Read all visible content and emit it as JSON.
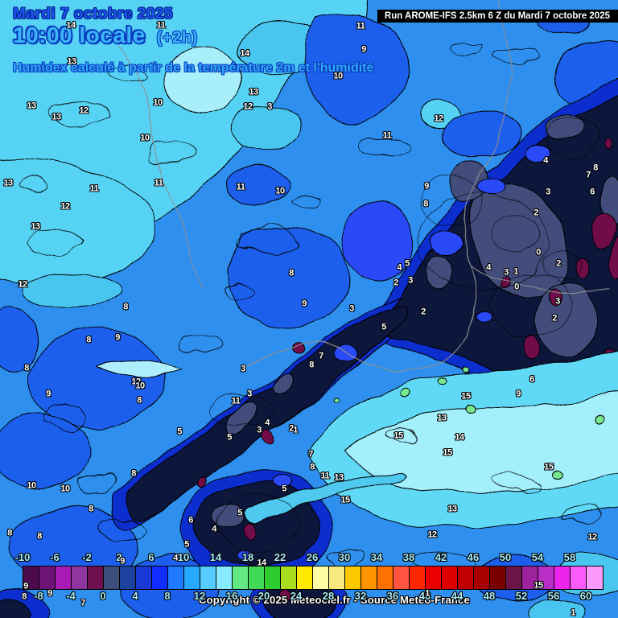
{
  "header": {
    "date": "Mardi 7 octobre 2025",
    "time": "10:00 locale",
    "time_offset": "(+2h)",
    "subtitle": "Humidex calculé à partir de la température 2m et l'humidité",
    "run_info": "Run AROME-IFS 2.5km 6 Z du Mardi 7 octobre 2025"
  },
  "footer": {
    "copyright": "Copyright © 2025 Meteociel.fr - Source Meteo-France"
  },
  "colorbar": {
    "quantity": "humidex",
    "labels_top": [
      "-10",
      "-6",
      "-2",
      "2",
      "6",
      "10",
      "14",
      "18",
      "22",
      "26",
      "30",
      "34",
      "38",
      "42",
      "46",
      "50",
      "54",
      "58"
    ],
    "labels_bottom": [
      "-8",
      "-4",
      "0",
      "4",
      "8",
      "12",
      "16",
      "20",
      "24",
      "28",
      "32",
      "36",
      "40",
      "44",
      "48",
      "52",
      "56",
      "60"
    ],
    "cells": [
      "#4c0b4c",
      "#6d1277",
      "#a81cb4",
      "#8f35a0",
      "#6e1050",
      "#3d4d7a",
      "#1b429e",
      "#1a38d4",
      "#102cff",
      "#1e7aff",
      "#27a8ff",
      "#55ccff",
      "#8aeaff",
      "#63e983",
      "#3fd957",
      "#2ecc2e",
      "#a8dc1e",
      "#ffe900",
      "#feffa5",
      "#f7e97e",
      "#fec800",
      "#fe9400",
      "#fe7000",
      "#fd5340",
      "#fe2600",
      "#ea0000",
      "#dc0000",
      "#c00000",
      "#a80000",
      "#7a0000",
      "#6b1547",
      "#9c239c",
      "#b92fc6",
      "#ec25ec",
      "#fb5bfb",
      "#fc9afc"
    ]
  },
  "map": {
    "palette": {
      "light_cyan": "#57d3f4",
      "pale_cyan": "#a9eefb",
      "cyan": "#49c6f0",
      "medium_blue": "#2e8fee",
      "blue": "#1d5eec",
      "deep_blue": "#0d2ecf",
      "bright_blue": "#2a49f7",
      "dark_navy": "#10123a",
      "slate": "#434e7c",
      "maroon": "#6f1049",
      "valley_cyan": "#5fd9f6",
      "valley_pale": "#a3effc",
      "green": "#79e98f",
      "contour": "#000000",
      "border_gray": "#8f8f8f"
    },
    "value_labels": [
      [
        14,
        88,
        32
      ],
      [
        11,
        200,
        32
      ],
      [
        14,
        304,
        67
      ],
      [
        13,
        89,
        77
      ],
      [
        11,
        448,
        33
      ],
      [
        9,
        452,
        62
      ],
      [
        10,
        420,
        95
      ],
      [
        12,
        545,
        148
      ],
      [
        13,
        315,
        115
      ],
      [
        12,
        308,
        133
      ],
      [
        3,
        335,
        133
      ],
      [
        13,
        39,
        132
      ],
      [
        12,
        104,
        138
      ],
      [
        13,
        70,
        146
      ],
      [
        10,
        196,
        128
      ],
      [
        10,
        180,
        172
      ],
      [
        13,
        10,
        228
      ],
      [
        11,
        117,
        235
      ],
      [
        11,
        197,
        228
      ],
      [
        11,
        299,
        233
      ],
      [
        10,
        348,
        238
      ],
      [
        12,
        81,
        257
      ],
      [
        13,
        44,
        282
      ],
      [
        11,
        481,
        169
      ],
      [
        9,
        530,
        232
      ],
      [
        8,
        529,
        254
      ],
      [
        4,
        678,
        200
      ],
      [
        8,
        740,
        209
      ],
      [
        7,
        731,
        218
      ],
      [
        3,
        681,
        239
      ],
      [
        6,
        736,
        239
      ],
      [
        2,
        666,
        265
      ],
      [
        12,
        28,
        354
      ],
      [
        8,
        156,
        382
      ],
      [
        8,
        362,
        340
      ],
      [
        9,
        378,
        378
      ],
      [
        0,
        669,
        314
      ],
      [
        2,
        694,
        328
      ],
      [
        4,
        607,
        333
      ],
      [
        3,
        629,
        339
      ],
      [
        1,
        641,
        338
      ],
      [
        0,
        642,
        357
      ],
      [
        5,
        506,
        328
      ],
      [
        4,
        496,
        333
      ],
      [
        2,
        492,
        352
      ],
      [
        3,
        510,
        349
      ],
      [
        3,
        437,
        384
      ],
      [
        2,
        526,
        388
      ],
      [
        3,
        693,
        375
      ],
      [
        2,
        689,
        396
      ],
      [
        5,
        477,
        407
      ],
      [
        8,
        110,
        423
      ],
      [
        9,
        146,
        420
      ],
      [
        8,
        33,
        458
      ],
      [
        9,
        60,
        490
      ],
      [
        12,
        169,
        475
      ],
      [
        10,
        174,
        480
      ],
      [
        8,
        173,
        498
      ],
      [
        3,
        302,
        459
      ],
      [
        3,
        310,
        490
      ],
      [
        11,
        293,
        499
      ],
      [
        4,
        332,
        526
      ],
      [
        3,
        322,
        535
      ],
      [
        2,
        362,
        533
      ],
      [
        1,
        367,
        535
      ],
      [
        5,
        223,
        537
      ],
      [
        5,
        285,
        544
      ],
      [
        7,
        399,
        443
      ],
      [
        8,
        387,
        454
      ],
      [
        7,
        386,
        565
      ],
      [
        8,
        388,
        581
      ],
      [
        11,
        404,
        592
      ],
      [
        13,
        421,
        594
      ],
      [
        15,
        429,
        622
      ],
      [
        6,
        661,
        472
      ],
      [
        9,
        644,
        490
      ],
      [
        15,
        579,
        493
      ],
      [
        13,
        549,
        520
      ],
      [
        15,
        495,
        542
      ],
      [
        14,
        571,
        544
      ],
      [
        15,
        556,
        563
      ],
      [
        15,
        682,
        581
      ],
      [
        13,
        562,
        633
      ],
      [
        12,
        537,
        665
      ],
      [
        12,
        736,
        668
      ],
      [
        10,
        39,
        604
      ],
      [
        10,
        81,
        608
      ],
      [
        8,
        166,
        589
      ],
      [
        8,
        113,
        633
      ],
      [
        6,
        237,
        647
      ],
      [
        4,
        266,
        658
      ],
      [
        5,
        298,
        638
      ],
      [
        5,
        353,
        608
      ],
      [
        8,
        12,
        663
      ],
      [
        8,
        49,
        667
      ],
      [
        5,
        232,
        677
      ],
      [
        9,
        32,
        729
      ],
      [
        8,
        30,
        742
      ],
      [
        9,
        62,
        738
      ],
      [
        7,
        103,
        750
      ],
      [
        14,
        325,
        700
      ],
      [
        15,
        669,
        728
      ],
      [
        1,
        531,
        738
      ],
      [
        1,
        712,
        762
      ],
      [
        4,
        218,
        694
      ],
      [
        9,
        152,
        698
      ]
    ]
  }
}
